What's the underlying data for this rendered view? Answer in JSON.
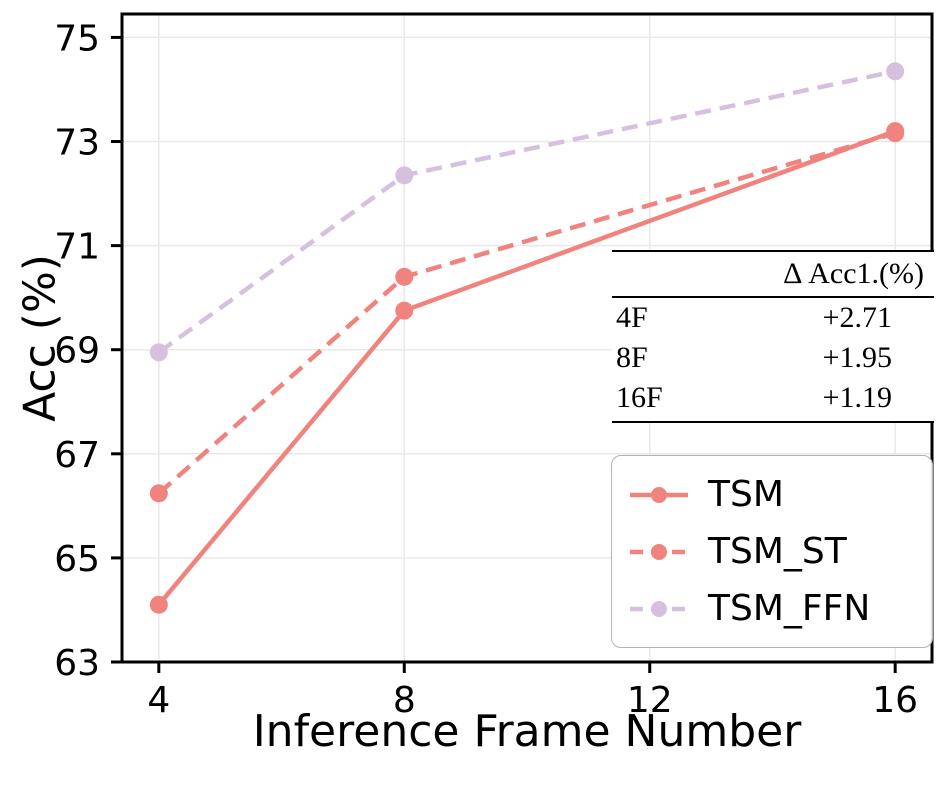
{
  "chart_data": {
    "type": "line",
    "title": "",
    "xlabel": "Inference Frame Number",
    "ylabel": "Acc (%)",
    "x": [
      4,
      8,
      16
    ],
    "xlim": [
      3.4,
      16.6
    ],
    "ylim": [
      63,
      75.45
    ],
    "xticks": [
      4,
      8,
      12,
      16
    ],
    "yticks": [
      63,
      65,
      67,
      69,
      71,
      73,
      75
    ],
    "grid": true,
    "legend_position": "lower right",
    "series": [
      {
        "name": "TSM",
        "values": [
          64.1,
          69.75,
          73.2
        ],
        "color": "#F0837E",
        "dash": "solid"
      },
      {
        "name": "TSM_ST",
        "values": [
          66.24,
          70.4,
          73.16
        ],
        "color": "#F0837E",
        "dash": "dashed"
      },
      {
        "name": "TSM_FFN",
        "values": [
          68.95,
          72.35,
          74.35
        ],
        "color": "#D5C0DE",
        "dash": "dashed"
      }
    ]
  },
  "inset_table": {
    "header": "Δ Acc1.(%)",
    "rows": [
      {
        "label": "4F",
        "value": "+2.71"
      },
      {
        "label": "8F",
        "value": "+1.95"
      },
      {
        "label": "16F",
        "value": "+1.19"
      }
    ]
  },
  "colors": {
    "grid": "#e9e9e9",
    "axis": "#000000",
    "legend_border": "#b3b3b3"
  }
}
